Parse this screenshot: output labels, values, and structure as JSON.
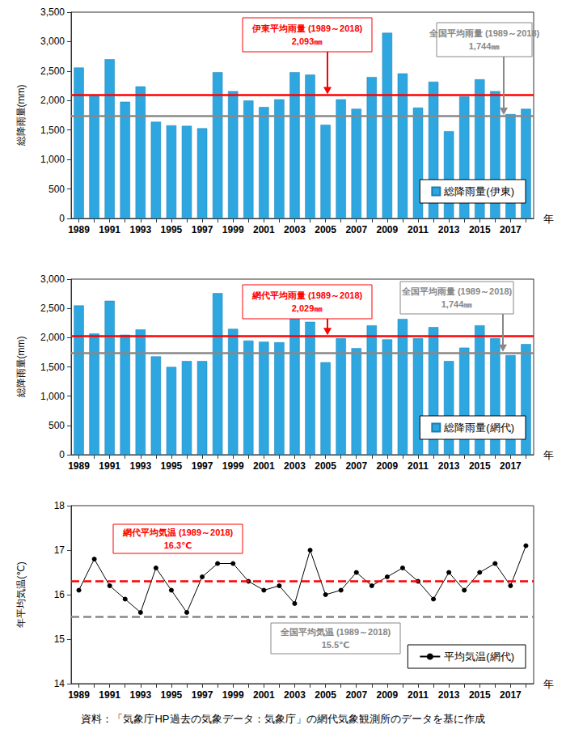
{
  "chart_data": [
    {
      "type": "bar",
      "y_label": "総降雨量(mm)",
      "x_label": "年",
      "categories": [
        "1989",
        null,
        "1991",
        null,
        "1993",
        null,
        "1995",
        null,
        "1997",
        null,
        "1999",
        null,
        "2001",
        null,
        "2003",
        null,
        "2005",
        null,
        "2007",
        null,
        "2009",
        null,
        "2011",
        null,
        "2013",
        null,
        "2015",
        null,
        "2017",
        null
      ],
      "series": [
        {
          "name": "総降雨量(伊東)",
          "color": "#2ea7e0",
          "values": [
            2560,
            2080,
            2700,
            1980,
            2240,
            1640,
            1580,
            1570,
            1530,
            2480,
            2160,
            2000,
            1890,
            2020,
            2480,
            2440,
            1590,
            2020,
            1860,
            2400,
            3150,
            2460,
            1880,
            2320,
            1480,
            2070,
            2360,
            2160,
            1770,
            1860
          ]
        }
      ],
      "ylim": [
        0,
        3500
      ],
      "yticks": [
        0,
        500,
        {
          "value": 1000,
          "label": "1,000"
        },
        {
          "value": 1500,
          "label": "1,500"
        },
        {
          "value": 2000,
          "label": "2,000"
        },
        {
          "value": 2500,
          "label": "2,500"
        },
        {
          "value": 3000,
          "label": "3,000"
        },
        {
          "value": 3500,
          "label": "3,500"
        }
      ],
      "grid": false,
      "legend": "lower right",
      "reference_lines": [
        {
          "name": "伊東平均雨量 (1989～2018)",
          "value": 2093,
          "label": "2,093㎜",
          "color": "#ff0000",
          "line_style": "solid"
        },
        {
          "name": "全国平均雨量 (1989～2018)",
          "value": 1744,
          "label": "1,744㎜",
          "color": "#888888",
          "line_style": "solid"
        }
      ]
    },
    {
      "type": "bar",
      "y_label": "総降雨量(mm)",
      "x_label": "年",
      "categories": [
        "1989",
        null,
        "1991",
        null,
        "1993",
        null,
        "1995",
        null,
        "1997",
        null,
        "1999",
        null,
        "2001",
        null,
        "2003",
        null,
        "2005",
        null,
        "2007",
        null,
        "2009",
        null,
        "2011",
        null,
        "2013",
        null,
        "2015",
        null,
        "2017",
        null
      ],
      "series": [
        {
          "name": "総降雨量(網代)",
          "color": "#2ea7e0",
          "values": [
            2550,
            2070,
            2630,
            2050,
            2140,
            1680,
            1500,
            1600,
            1600,
            2760,
            2150,
            1950,
            1930,
            1920,
            2490,
            2270,
            1580,
            1990,
            1820,
            2210,
            1970,
            2320,
            1990,
            2180,
            1600,
            1830,
            2210,
            1990,
            1700,
            1890
          ]
        }
      ],
      "ylim": [
        0,
        3000
      ],
      "yticks": [
        0,
        500,
        {
          "value": 1000,
          "label": "1,000"
        },
        {
          "value": 1500,
          "label": "1,500"
        },
        {
          "value": 2000,
          "label": "2,000"
        },
        {
          "value": 2500,
          "label": "2,500"
        },
        {
          "value": 3000,
          "label": "3,000"
        }
      ],
      "grid": false,
      "legend": "lower right",
      "reference_lines": [
        {
          "name": "網代平均雨量 (1989～2018)",
          "value": 2029,
          "label": "2,029㎜",
          "color": "#ff0000",
          "line_style": "solid"
        },
        {
          "name": "全国平均雨量 (1989～2018)",
          "value": 1744,
          "label": "1,744㎜",
          "color": "#888888",
          "line_style": "solid"
        }
      ]
    },
    {
      "type": "line",
      "y_label": "年平均気温(℃)",
      "x_label": "年",
      "categories": [
        "1989",
        null,
        "1991",
        null,
        "1993",
        null,
        "1995",
        null,
        "1997",
        null,
        "1999",
        null,
        "2001",
        null,
        "2003",
        null,
        "2005",
        null,
        "2007",
        null,
        "2009",
        null,
        "2011",
        null,
        "2013",
        null,
        "2015",
        null,
        "2017",
        null
      ],
      "series": [
        {
          "name": "平均気温(網代)",
          "color": "#000000",
          "marker": "circle",
          "values": [
            16.1,
            16.8,
            16.2,
            15.9,
            15.6,
            16.6,
            16.1,
            15.6,
            16.4,
            16.7,
            16.7,
            16.3,
            16.1,
            16.2,
            15.8,
            17.0,
            16.0,
            16.1,
            16.5,
            16.2,
            16.4,
            16.6,
            16.3,
            15.9,
            16.5,
            16.1,
            16.5,
            16.7,
            16.2,
            17.1
          ]
        }
      ],
      "ylim": [
        14,
        18
      ],
      "yticks": [
        14,
        15,
        16,
        17,
        18
      ],
      "grid": false,
      "legend": "lower right",
      "reference_lines": [
        {
          "name": "網代平均気温 (1989～2018)",
          "value": 16.3,
          "label": "16.3℃",
          "color": "#ff0000",
          "line_style": "dashed"
        },
        {
          "name": "全国平均気温 (1989～2018)",
          "value": 15.5,
          "label": "15.5℃",
          "color": "#888888",
          "line_style": "dashed"
        }
      ]
    }
  ],
  "source": "資料：「気象庁HP過去の気象データ：気象庁」の網代気象観測所のデータを基に作成"
}
